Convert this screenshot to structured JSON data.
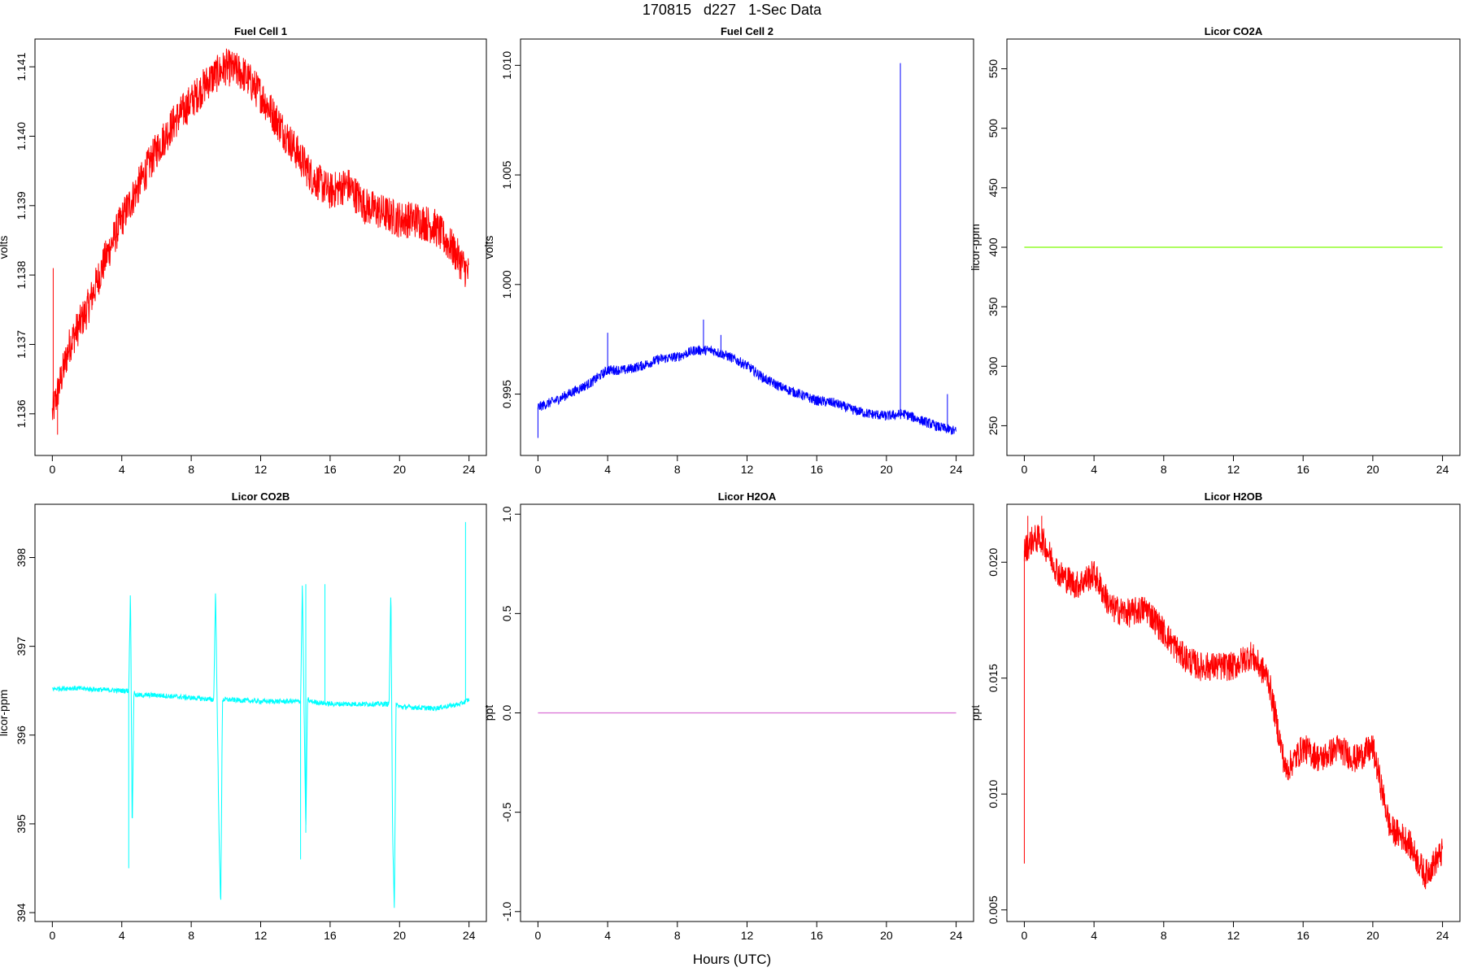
{
  "figure": {
    "title": "170815   d227   1-Sec Data",
    "xlabel": "Hours (UTC)"
  },
  "chart_data": [
    {
      "type": "line",
      "title": "Fuel Cell 1",
      "ylabel": "volts",
      "color": "#ff0000",
      "xlim": [
        -1,
        25
      ],
      "ylim": [
        1.1354,
        1.1414
      ],
      "xticks": [
        "0",
        "4",
        "8",
        "12",
        "16",
        "20",
        "24"
      ],
      "yticks": [
        "1.136",
        "1.137",
        "1.138",
        "1.139",
        "1.140",
        "1.141"
      ],
      "series": [
        {
          "x": [
            0,
            0.5,
            1,
            2,
            3,
            4,
            5,
            6,
            7,
            8,
            9,
            10,
            11,
            12,
            13,
            14,
            15,
            16,
            17,
            18,
            19,
            20,
            21,
            22,
            23,
            24
          ],
          "y": [
            1.136,
            1.1365,
            1.137,
            1.1375,
            1.1382,
            1.1388,
            1.1393,
            1.1398,
            1.1402,
            1.1405,
            1.1408,
            1.141,
            1.1409,
            1.1406,
            1.1402,
            1.1398,
            1.1394,
            1.1392,
            1.1393,
            1.139,
            1.1389,
            1.1388,
            1.1388,
            1.1387,
            1.1384,
            1.138
          ],
          "spikes": [
            [
              0.05,
              1.1381
            ],
            [
              0.3,
              1.1357
            ]
          ]
        }
      ]
    },
    {
      "type": "line",
      "title": "Fuel Cell 2",
      "ylabel": "volts",
      "color": "#0000ff",
      "xlim": [
        -1,
        25
      ],
      "ylim": [
        0.9922,
        1.0112
      ],
      "xticks": [
        "0",
        "4",
        "8",
        "12",
        "16",
        "20",
        "24"
      ],
      "yticks": [
        "0.995",
        "1.000",
        "1.005",
        "1.010"
      ],
      "series": [
        {
          "x": [
            0,
            1,
            2,
            3,
            4,
            5,
            6,
            7,
            8,
            9,
            10,
            11,
            12,
            13,
            14,
            15,
            16,
            17,
            18,
            19,
            20,
            21,
            22,
            23,
            24
          ],
          "y": [
            0.9944,
            0.9947,
            0.9951,
            0.9955,
            0.9961,
            0.9961,
            0.9963,
            0.9966,
            0.9967,
            0.997,
            0.997,
            0.9967,
            0.9963,
            0.9957,
            0.9953,
            0.995,
            0.9947,
            0.9946,
            0.9943,
            0.9941,
            0.994,
            0.9941,
            0.9938,
            0.9935,
            0.9933
          ],
          "spikes": [
            [
              0.0,
              0.993
            ],
            [
              4.0,
              0.9978
            ],
            [
              9.5,
              0.9984
            ],
            [
              10.5,
              0.9977
            ],
            [
              20.8,
              1.0101
            ],
            [
              23.5,
              0.995
            ]
          ]
        }
      ]
    },
    {
      "type": "line",
      "title": "Licor CO2A",
      "ylabel": "licor-ppm",
      "color": "#7cfc00",
      "xlim": [
        -1,
        25
      ],
      "ylim": [
        225,
        575
      ],
      "xticks": [
        "0",
        "4",
        "8",
        "12",
        "16",
        "20",
        "24"
      ],
      "yticks": [
        "250",
        "300",
        "350",
        "400",
        "450",
        "500",
        "550"
      ],
      "series": [
        {
          "x": [
            0,
            24
          ],
          "y": [
            400,
            400
          ],
          "spikes": []
        }
      ]
    },
    {
      "type": "line",
      "title": "Licor CO2B",
      "ylabel": "licor-ppm",
      "color": "#00ffff",
      "xlim": [
        -1,
        25
      ],
      "ylim": [
        393.9,
        398.6
      ],
      "xticks": [
        "0",
        "4",
        "8",
        "12",
        "16",
        "20",
        "24"
      ],
      "yticks": [
        "394",
        "395",
        "396",
        "397",
        "398"
      ],
      "series": [
        {
          "x": [
            0,
            1,
            2,
            3,
            4,
            4.4,
            4.5,
            4.6,
            4.7,
            4.8,
            6,
            8,
            9.3,
            9.4,
            9.6,
            9.7,
            9.8,
            10,
            12,
            14.3,
            14.4,
            14.6,
            14.7,
            14.8,
            16,
            18,
            19.4,
            19.5,
            19.6,
            19.7,
            19.8,
            20,
            22,
            23.5,
            24
          ],
          "y": [
            396.52,
            396.53,
            396.52,
            396.51,
            396.5,
            396.5,
            397.65,
            394.9,
            396.5,
            396.45,
            396.45,
            396.42,
            396.4,
            397.65,
            394.9,
            394.08,
            396.4,
            396.4,
            396.38,
            396.38,
            397.7,
            394.9,
            396.42,
            396.38,
            396.35,
            396.35,
            396.35,
            397.65,
            394.9,
            394.05,
            396.35,
            396.32,
            396.3,
            396.35,
            396.4
          ],
          "spikes": [
            [
              4.4,
              394.5
            ],
            [
              14.3,
              394.6
            ],
            [
              14.6,
              397.7
            ],
            [
              15.7,
              397.7
            ],
            [
              23.8,
              398.4
            ]
          ]
        }
      ]
    },
    {
      "type": "line",
      "title": "Licor H2OA",
      "ylabel": "ppt",
      "color": "#da70d6",
      "xlim": [
        -1,
        25
      ],
      "ylim": [
        -1.05,
        1.05
      ],
      "xticks": [
        "0",
        "4",
        "8",
        "12",
        "16",
        "20",
        "24"
      ],
      "yticks": [
        "-1.0",
        "-0.5",
        "0.0",
        "0.5",
        "1.0"
      ],
      "series": [
        {
          "x": [
            0,
            24
          ],
          "y": [
            0,
            0
          ],
          "spikes": []
        }
      ]
    },
    {
      "type": "line",
      "title": "Licor H2OB",
      "ylabel": "ppt",
      "color": "#ff0000",
      "xlim": [
        -1,
        25
      ],
      "ylim": [
        0.0045,
        0.0225
      ],
      "xticks": [
        "0",
        "4",
        "8",
        "12",
        "16",
        "20",
        "24"
      ],
      "yticks": [
        "0.005",
        "0.010",
        "0.015",
        "0.020"
      ],
      "series": [
        {
          "x": [
            0,
            0.5,
            1,
            2,
            3,
            4,
            5,
            6,
            7,
            8,
            9,
            10,
            11,
            12,
            13,
            14,
            15,
            16,
            17,
            18,
            19,
            20,
            21,
            22,
            23,
            24
          ],
          "y": [
            0.0205,
            0.021,
            0.021,
            0.0195,
            0.019,
            0.0195,
            0.018,
            0.0178,
            0.018,
            0.017,
            0.016,
            0.0155,
            0.0155,
            0.0155,
            0.016,
            0.015,
            0.011,
            0.012,
            0.0115,
            0.012,
            0.0115,
            0.012,
            0.0085,
            0.008,
            0.0065,
            0.0075
          ],
          "spikes": [
            [
              0.0,
              0.007
            ],
            [
              0.2,
              0.022
            ],
            [
              1.0,
              0.022
            ]
          ]
        }
      ]
    }
  ]
}
